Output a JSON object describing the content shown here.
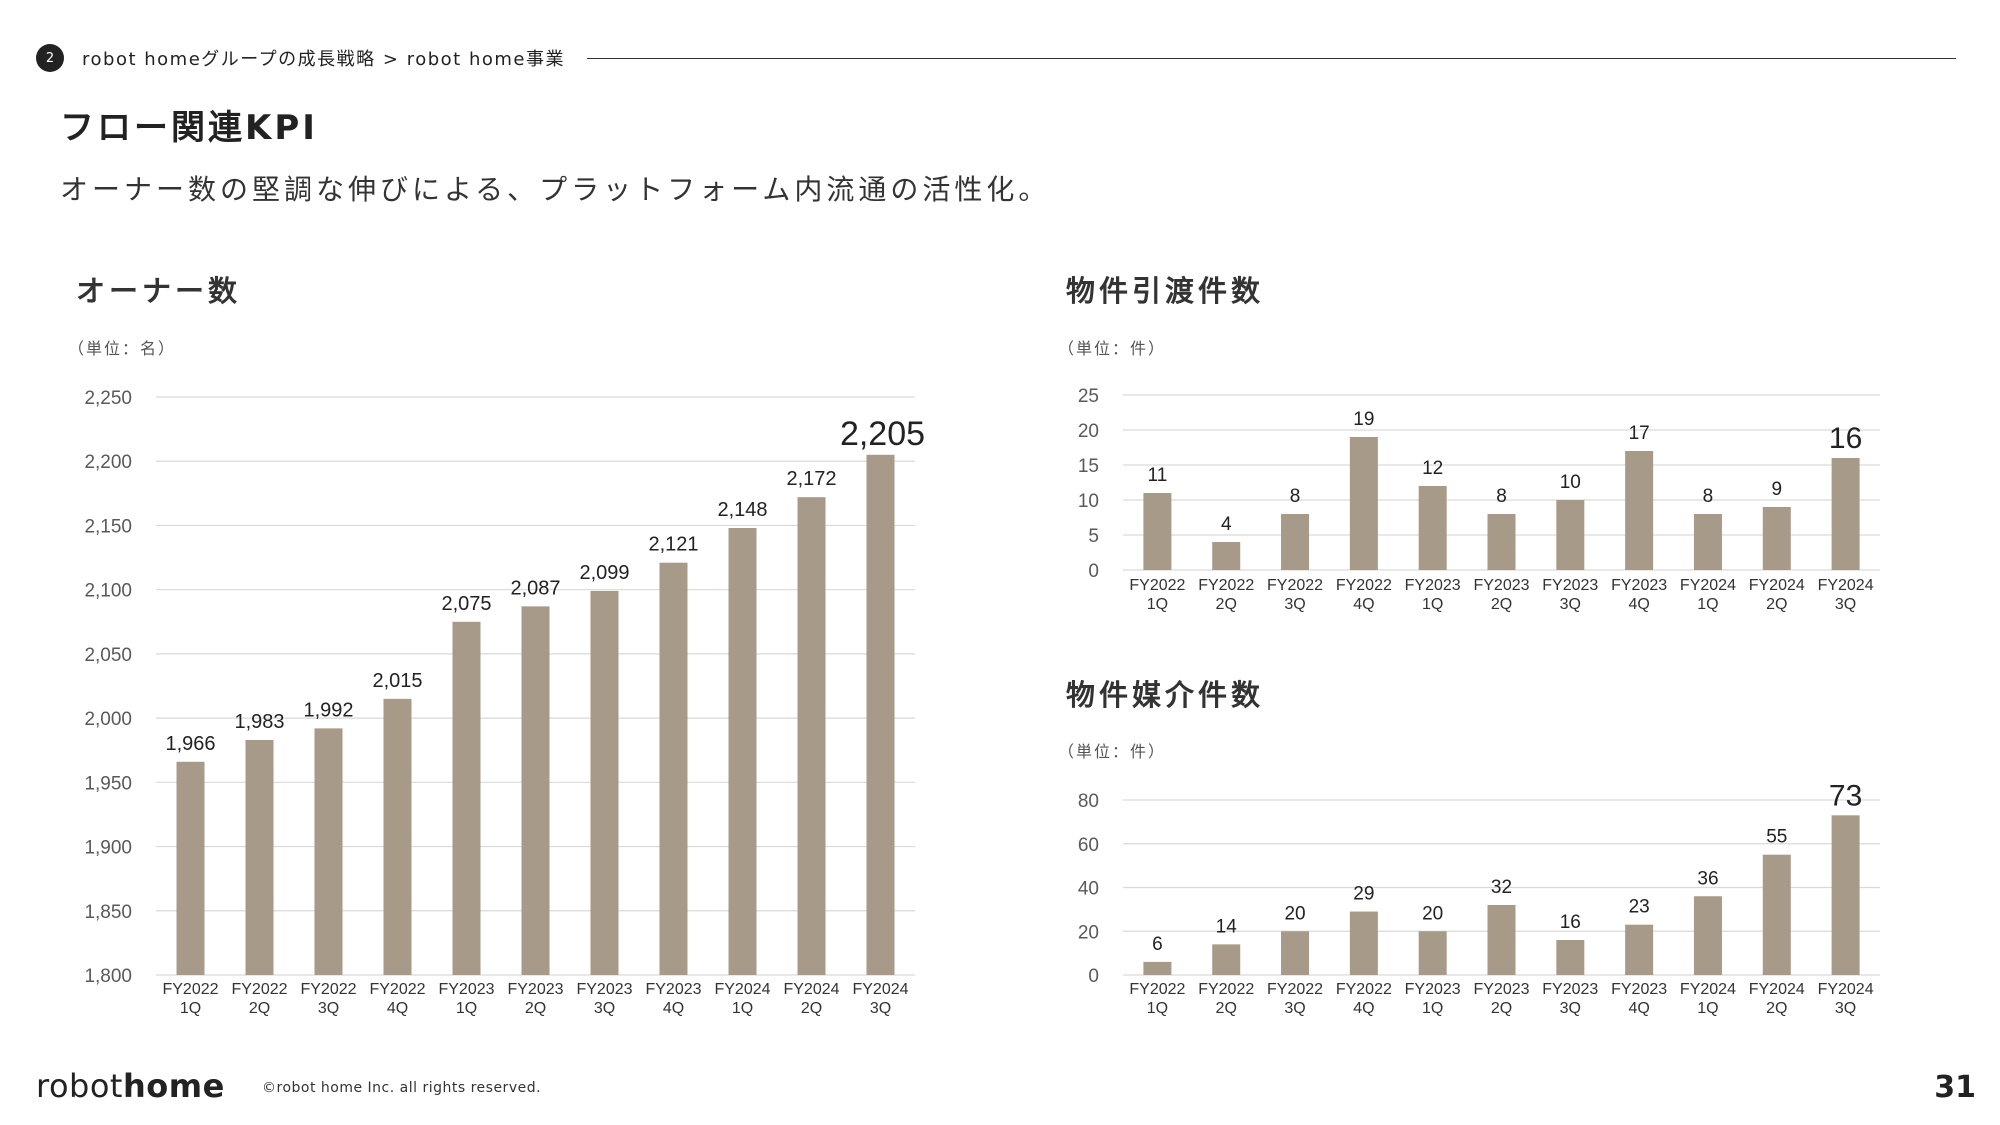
{
  "header": {
    "section_number": "2",
    "breadcrumb": "robot homeグループの成長戦略 > robot home事業"
  },
  "page": {
    "title": "フロー関連KPI",
    "subtitle": "オーナー数の堅調な伸びによる、プラットフォーム内流通の活性化。"
  },
  "footer": {
    "logo_light": "robot",
    "logo_bold": "home",
    "copyright": "©robot home Inc. all rights reserved.",
    "page_number": "31"
  },
  "colors": {
    "bar": "#a89a88",
    "grid": "#d9d9d9",
    "axis_text": "#595959",
    "label_text": "#222222"
  },
  "chart_data": [
    {
      "type": "bar",
      "title": "オーナー数",
      "unit": "（単位：名）",
      "categories": [
        [
          "FY2022",
          "1Q"
        ],
        [
          "FY2022",
          "2Q"
        ],
        [
          "FY2022",
          "3Q"
        ],
        [
          "FY2022",
          "4Q"
        ],
        [
          "FY2023",
          "1Q"
        ],
        [
          "FY2023",
          "2Q"
        ],
        [
          "FY2023",
          "3Q"
        ],
        [
          "FY2023",
          "4Q"
        ],
        [
          "FY2024",
          "1Q"
        ],
        [
          "FY2024",
          "2Q"
        ],
        [
          "FY2024",
          "3Q"
        ]
      ],
      "values": [
        1966,
        1983,
        1992,
        2015,
        2075,
        2087,
        2099,
        2121,
        2148,
        2172,
        2205
      ],
      "labels": [
        "1,966",
        "1,983",
        "1,992",
        "2,015",
        "2,075",
        "2,087",
        "2,099",
        "2,121",
        "2,148",
        "2,172",
        "2,205"
      ],
      "yticks": [
        "1,800",
        "1,850",
        "1,900",
        "1,950",
        "2,000",
        "2,050",
        "2,100",
        "2,150",
        "2,200",
        "2,250"
      ],
      "ylim": [
        1800,
        2250
      ],
      "ystep": 50,
      "grid": true
    },
    {
      "type": "bar",
      "title": "物件引渡件数",
      "unit": "（単位：件）",
      "categories": [
        [
          "FY2022",
          "1Q"
        ],
        [
          "FY2022",
          "2Q"
        ],
        [
          "FY2022",
          "3Q"
        ],
        [
          "FY2022",
          "4Q"
        ],
        [
          "FY2023",
          "1Q"
        ],
        [
          "FY2023",
          "2Q"
        ],
        [
          "FY2023",
          "3Q"
        ],
        [
          "FY2023",
          "4Q"
        ],
        [
          "FY2024",
          "1Q"
        ],
        [
          "FY2024",
          "2Q"
        ],
        [
          "FY2024",
          "3Q"
        ]
      ],
      "values": [
        11,
        4,
        8,
        19,
        12,
        8,
        10,
        17,
        8,
        9,
        16
      ],
      "labels": [
        "11",
        "4",
        "8",
        "19",
        "12",
        "8",
        "10",
        "17",
        "8",
        "9",
        "16"
      ],
      "yticks": [
        "0",
        "5",
        "10",
        "15",
        "20",
        "25"
      ],
      "ylim": [
        0,
        25
      ],
      "ystep": 5,
      "grid": true
    },
    {
      "type": "bar",
      "title": "物件媒介件数",
      "unit": "（単位：件）",
      "categories": [
        [
          "FY2022",
          "1Q"
        ],
        [
          "FY2022",
          "2Q"
        ],
        [
          "FY2022",
          "3Q"
        ],
        [
          "FY2022",
          "4Q"
        ],
        [
          "FY2023",
          "1Q"
        ],
        [
          "FY2023",
          "2Q"
        ],
        [
          "FY2023",
          "3Q"
        ],
        [
          "FY2023",
          "4Q"
        ],
        [
          "FY2024",
          "1Q"
        ],
        [
          "FY2024",
          "2Q"
        ],
        [
          "FY2024",
          "3Q"
        ]
      ],
      "values": [
        6,
        14,
        20,
        29,
        20,
        32,
        16,
        23,
        36,
        55,
        73
      ],
      "labels": [
        "6",
        "14",
        "20",
        "29",
        "20",
        "32",
        "16",
        "23",
        "36",
        "55",
        "73"
      ],
      "yticks": [
        "0",
        "20",
        "40",
        "60",
        "80"
      ],
      "ylim": [
        0,
        80
      ],
      "ystep": 20,
      "grid": true
    }
  ]
}
